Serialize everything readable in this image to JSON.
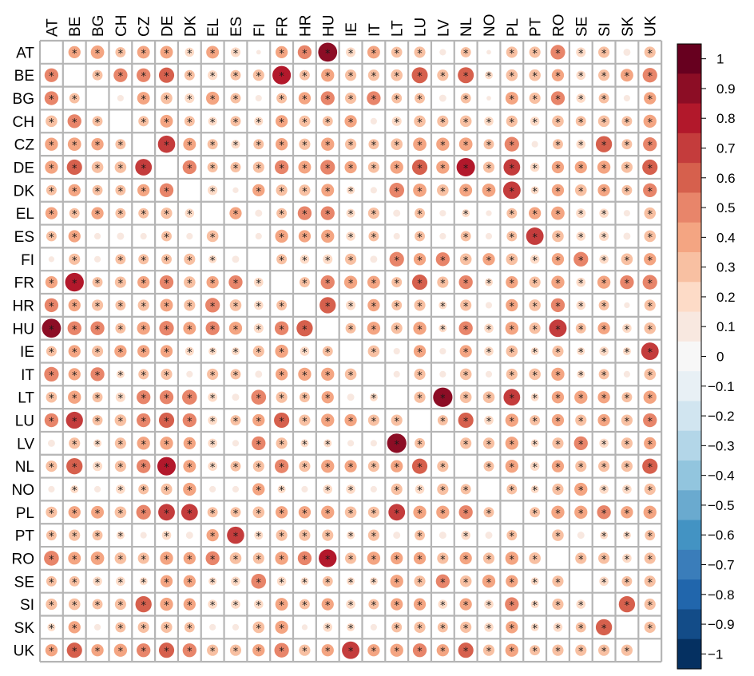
{
  "chart_data": {
    "type": "heatmap",
    "style": "correlation-circles",
    "labels": [
      "AT",
      "BE",
      "BG",
      "CH",
      "CZ",
      "DE",
      "DK",
      "EL",
      "ES",
      "FI",
      "FR",
      "HR",
      "HU",
      "IE",
      "IT",
      "LT",
      "LU",
      "LV",
      "NL",
      "NO",
      "PL",
      "PT",
      "RO",
      "SE",
      "SI",
      "SK",
      "UK"
    ],
    "scale": {
      "min": -1,
      "max": 1,
      "ticks": [
        1,
        0.9,
        0.8,
        0.7,
        0.6,
        0.5,
        0.4,
        0.3,
        0.2,
        0.1,
        0,
        -0.1,
        -0.2,
        -0.3,
        -0.4,
        -0.5,
        -0.6,
        -0.7,
        -0.8,
        -0.9,
        -1
      ],
      "colors": [
        "#053061",
        "#134c88",
        "#2166ac",
        "#3a7dba",
        "#4393c3",
        "#6aaacf",
        "#92c5de",
        "#b3d6e8",
        "#d1e5f0",
        "#e8f0f5",
        "#f7f7f7",
        "#f8e8e0",
        "#fddbc7",
        "#f8c0a2",
        "#f4a582",
        "#e8856a",
        "#d6604d",
        "#c43c3c",
        "#b2182b",
        "#8c0d25",
        "#67001f"
      ]
    },
    "significance_marker": "*",
    "significance_threshold": 0.15,
    "matrix": [
      [
        null,
        0.35,
        0.42,
        0.25,
        0.38,
        0.38,
        0.2,
        0.38,
        0.22,
        0.05,
        0.35,
        0.45,
        0.85,
        0.22,
        0.38,
        0.28,
        0.3,
        0.1,
        0.25,
        0.05,
        0.3,
        0.3,
        0.5,
        0.22,
        0.3,
        0.12,
        0.3
      ],
      [
        0.45,
        null,
        0.25,
        0.45,
        0.45,
        0.55,
        0.25,
        0.22,
        0.25,
        0.3,
        0.8,
        0.25,
        0.4,
        0.3,
        0.3,
        0.32,
        0.6,
        0.3,
        0.6,
        0.15,
        0.32,
        0.32,
        0.35,
        0.2,
        0.3,
        0.38,
        0.5
      ],
      [
        0.45,
        0.25,
        null,
        0.1,
        0.38,
        0.32,
        0.22,
        0.4,
        0.25,
        0.1,
        0.25,
        0.35,
        0.45,
        0.3,
        0.45,
        0.25,
        0.25,
        0.12,
        0.25,
        0.05,
        0.38,
        0.3,
        0.45,
        0.2,
        0.25,
        0.1,
        0.35
      ],
      [
        0.32,
        0.45,
        0.25,
        null,
        0.25,
        0.38,
        0.25,
        0.18,
        0.25,
        0.18,
        0.35,
        0.3,
        0.25,
        0.35,
        0.1,
        0.22,
        0.32,
        0.3,
        0.32,
        0.2,
        0.3,
        0.2,
        0.32,
        0.25,
        0.32,
        0.25,
        0.4
      ],
      [
        0.4,
        0.42,
        0.35,
        0.25,
        null,
        0.7,
        0.38,
        0.25,
        0.18,
        0.25,
        0.35,
        0.3,
        0.4,
        0.3,
        0.25,
        0.32,
        0.42,
        0.4,
        0.42,
        0.25,
        0.5,
        0.1,
        0.25,
        0.2,
        0.62,
        0.25,
        0.45
      ],
      [
        0.4,
        0.55,
        0.32,
        0.32,
        0.65,
        null,
        0.45,
        0.25,
        0.25,
        0.3,
        0.45,
        0.38,
        0.5,
        0.35,
        0.3,
        0.4,
        0.55,
        0.4,
        0.8,
        0.3,
        0.65,
        0.2,
        0.35,
        0.35,
        0.4,
        0.3,
        0.55
      ],
      [
        0.25,
        0.35,
        0.25,
        0.25,
        0.35,
        0.45,
        null,
        0.22,
        0.08,
        0.35,
        0.3,
        0.3,
        0.38,
        0.15,
        0.1,
        0.52,
        0.42,
        0.32,
        0.38,
        0.42,
        0.72,
        0.15,
        0.35,
        0.32,
        0.35,
        0.25,
        0.45
      ],
      [
        0.35,
        0.25,
        0.35,
        0.25,
        0.25,
        0.3,
        0.2,
        null,
        0.35,
        0.12,
        0.25,
        0.45,
        0.45,
        0.18,
        0.3,
        0.12,
        0.25,
        0.1,
        0.15,
        0.08,
        0.25,
        0.35,
        0.42,
        0.22,
        0.2,
        0.1,
        0.32
      ],
      [
        0.25,
        0.35,
        0.1,
        0.12,
        0.1,
        0.25,
        0.1,
        0.32,
        null,
        0.1,
        0.4,
        0.35,
        0.4,
        0.2,
        0.25,
        0.1,
        0.25,
        0.1,
        0.25,
        0.1,
        0.25,
        0.72,
        0.32,
        0.2,
        0.22,
        0.12,
        0.32
      ],
      [
        0.08,
        0.3,
        0.1,
        0.25,
        0.25,
        0.25,
        0.3,
        0.15,
        0.12,
        null,
        0.25,
        0.2,
        0.22,
        0.3,
        0.12,
        0.5,
        0.35,
        0.45,
        0.32,
        0.35,
        0.32,
        0.2,
        0.35,
        0.5,
        0.2,
        0.32,
        0.35
      ],
      [
        0.35,
        0.82,
        0.25,
        0.3,
        0.35,
        0.45,
        0.32,
        0.35,
        0.45,
        0.2,
        null,
        0.25,
        0.45,
        0.4,
        0.38,
        0.25,
        0.55,
        0.3,
        0.45,
        0.15,
        0.35,
        0.3,
        0.4,
        0.2,
        0.4,
        0.45,
        0.5
      ],
      [
        0.45,
        0.35,
        0.3,
        0.25,
        0.3,
        0.38,
        0.3,
        0.5,
        0.32,
        0.2,
        0.25,
        null,
        0.62,
        0.22,
        0.35,
        0.25,
        0.3,
        0.15,
        0.3,
        0.1,
        0.35,
        0.32,
        0.45,
        0.2,
        0.25,
        0.08,
        0.3
      ],
      [
        0.85,
        0.45,
        0.45,
        0.25,
        0.4,
        0.5,
        0.38,
        0.45,
        0.4,
        0.22,
        0.45,
        0.62,
        null,
        0.25,
        0.4,
        0.3,
        0.4,
        0.15,
        0.45,
        0.2,
        0.4,
        0.3,
        0.72,
        0.25,
        0.35,
        0.2,
        0.32
      ],
      [
        0.25,
        0.35,
        0.3,
        0.35,
        0.35,
        0.35,
        0.18,
        0.15,
        0.15,
        0.3,
        0.4,
        0.2,
        0.25,
        null,
        0.32,
        0.1,
        0.35,
        0.1,
        0.35,
        0.2,
        0.32,
        0.15,
        0.3,
        0.15,
        0.2,
        0.15,
        0.72
      ],
      [
        0.5,
        0.35,
        0.45,
        0.15,
        0.25,
        0.3,
        0.1,
        0.3,
        0.25,
        0.12,
        0.35,
        0.4,
        0.4,
        0.32,
        null,
        0.1,
        0.3,
        0.1,
        0.32,
        0.1,
        0.3,
        0.32,
        0.4,
        0.15,
        0.25,
        0.1,
        0.32
      ],
      [
        0.28,
        0.4,
        0.25,
        0.22,
        0.45,
        0.45,
        0.52,
        0.2,
        0.12,
        0.52,
        0.3,
        0.25,
        0.35,
        0.12,
        0.15,
        null,
        0.3,
        0.88,
        0.32,
        0.32,
        0.65,
        0.15,
        0.35,
        0.4,
        0.35,
        0.25,
        0.4
      ],
      [
        0.45,
        0.68,
        0.25,
        0.32,
        0.45,
        0.55,
        0.45,
        0.2,
        0.25,
        0.35,
        0.55,
        0.3,
        0.4,
        0.35,
        0.3,
        0.3,
        null,
        0.25,
        0.55,
        0.2,
        0.4,
        0.25,
        0.35,
        0.3,
        0.35,
        0.3,
        0.45
      ],
      [
        0.12,
        0.3,
        0.15,
        0.3,
        0.4,
        0.4,
        0.35,
        0.2,
        0.1,
        0.45,
        0.3,
        0.15,
        0.15,
        0.1,
        0.1,
        0.88,
        0.25,
        null,
        0.3,
        0.3,
        0.4,
        0.15,
        0.3,
        0.45,
        0.2,
        0.3,
        0.35
      ],
      [
        0.3,
        0.62,
        0.22,
        0.3,
        0.45,
        0.8,
        0.38,
        0.2,
        0.25,
        0.3,
        0.45,
        0.3,
        0.4,
        0.35,
        0.3,
        0.35,
        0.55,
        0.3,
        null,
        0.25,
        0.4,
        0.2,
        0.35,
        0.3,
        0.3,
        0.3,
        0.55
      ],
      [
        0.1,
        0.15,
        0.1,
        0.2,
        0.25,
        0.3,
        0.4,
        0.1,
        0.1,
        0.35,
        0.15,
        0.1,
        0.2,
        0.2,
        0.1,
        0.3,
        0.2,
        0.3,
        0.25,
        null,
        0.25,
        0.15,
        0.3,
        0.4,
        0.2,
        0.2,
        0.3
      ],
      [
        0.3,
        0.35,
        0.38,
        0.32,
        0.5,
        0.65,
        0.65,
        0.25,
        0.25,
        0.32,
        0.35,
        0.35,
        0.4,
        0.32,
        0.3,
        0.65,
        0.4,
        0.4,
        0.45,
        0.25,
        null,
        0.25,
        0.4,
        0.4,
        0.45,
        0.35,
        0.4
      ],
      [
        0.25,
        0.3,
        0.25,
        0.15,
        0.1,
        0.2,
        0.12,
        0.35,
        0.7,
        0.18,
        0.3,
        0.3,
        0.3,
        0.15,
        0.3,
        0.12,
        0.25,
        0.12,
        0.2,
        0.12,
        0.25,
        null,
        0.32,
        0.12,
        0.15,
        0.15,
        0.25
      ],
      [
        0.52,
        0.38,
        0.42,
        0.32,
        0.3,
        0.4,
        0.35,
        0.45,
        0.32,
        0.3,
        0.4,
        0.45,
        0.75,
        0.3,
        0.4,
        0.35,
        0.35,
        0.3,
        0.35,
        0.3,
        0.4,
        0.32,
        null,
        0.3,
        0.3,
        0.2,
        0.3
      ],
      [
        0.25,
        0.25,
        0.2,
        0.2,
        0.15,
        0.35,
        0.35,
        0.15,
        0.2,
        0.52,
        0.2,
        0.15,
        0.25,
        0.15,
        0.15,
        0.4,
        0.3,
        0.45,
        0.32,
        0.4,
        0.35,
        0.15,
        0.3,
        null,
        0.2,
        0.25,
        0.3
      ],
      [
        0.3,
        0.32,
        0.25,
        0.3,
        0.62,
        0.4,
        0.35,
        0.2,
        0.2,
        0.2,
        0.38,
        0.25,
        0.35,
        0.2,
        0.25,
        0.35,
        0.35,
        0.2,
        0.35,
        0.2,
        0.45,
        0.15,
        0.3,
        0.2,
        null,
        0.62,
        0.3
      ],
      [
        0.15,
        0.35,
        0.1,
        0.25,
        0.3,
        0.3,
        0.25,
        0.1,
        0.1,
        0.32,
        0.4,
        0.08,
        0.2,
        0.15,
        0.1,
        0.25,
        0.3,
        0.25,
        0.3,
        0.2,
        0.35,
        0.15,
        0.2,
        0.25,
        0.62,
        null,
        0.3
      ],
      [
        0.35,
        0.55,
        0.35,
        0.4,
        0.45,
        0.55,
        0.45,
        0.3,
        0.3,
        0.35,
        0.5,
        0.3,
        0.35,
        0.72,
        0.35,
        0.4,
        0.45,
        0.35,
        0.55,
        0.3,
        0.4,
        0.25,
        0.3,
        0.3,
        0.3,
        0.3,
        null
      ]
    ]
  }
}
